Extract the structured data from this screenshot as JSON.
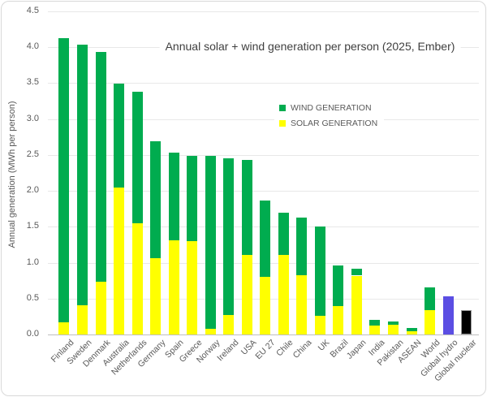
{
  "chart_data": {
    "type": "bar",
    "stacked": true,
    "title": "Annual solar + wind generation per person (2025, Ember)",
    "ylabel": "Annual generation (MWh per person)",
    "ylim": [
      0,
      4.5
    ],
    "yticks": [
      "0.0",
      "0.5",
      "1.0",
      "1.5",
      "2.0",
      "2.5",
      "3.0",
      "3.5",
      "4.0",
      "4.5"
    ],
    "grid": "horizontal",
    "legend_position": "inside-center-right",
    "categories": [
      "Finland",
      "Sweden",
      "Denmark",
      "Australia",
      "Netherlands",
      "Germany",
      "Spain",
      "Greece",
      "Norway",
      "Ireland",
      "USA",
      "EU 27",
      "Chile",
      "China",
      "UK",
      "Brazil",
      "Japan",
      "India",
      "Pakistan",
      "ASEAN",
      "World",
      "Global hydro",
      "Global nuclear"
    ],
    "series": [
      {
        "name": "SOLAR GENERATION",
        "color": "#FFFF00",
        "values": [
          0.17,
          0.41,
          0.74,
          2.05,
          1.55,
          1.06,
          1.31,
          1.3,
          0.08,
          0.27,
          1.11,
          0.8,
          1.11,
          0.83,
          0.26,
          0.4,
          0.82,
          0.12,
          0.14,
          0.05,
          0.34,
          0,
          0
        ]
      },
      {
        "name": "WIND GENERATION",
        "color": "#00AC4F",
        "values": [
          3.96,
          3.63,
          3.2,
          1.45,
          1.83,
          1.63,
          1.22,
          1.19,
          2.41,
          2.18,
          1.32,
          1.07,
          0.59,
          0.8,
          1.24,
          0.56,
          0.1,
          0.08,
          0.04,
          0.04,
          0.32,
          0,
          0
        ]
      }
    ],
    "single_bars": [
      {
        "category": "Global hydro",
        "value": 0.53,
        "color": "#5B4EE3"
      },
      {
        "category": "Global nuclear",
        "value": 0.34,
        "color": "#000000",
        "border": "#999999"
      }
    ]
  },
  "legend": [
    {
      "label": "WIND GENERATION",
      "color": "#00AC4F"
    },
    {
      "label": "SOLAR GENERATION",
      "color": "#FFFF00"
    }
  ],
  "colors": {
    "gridline": "#E8E8E8",
    "axis_line": "#BFBFBF",
    "text": "#595959",
    "title_text": "#404040",
    "frame_border": "#D9D9D9"
  }
}
